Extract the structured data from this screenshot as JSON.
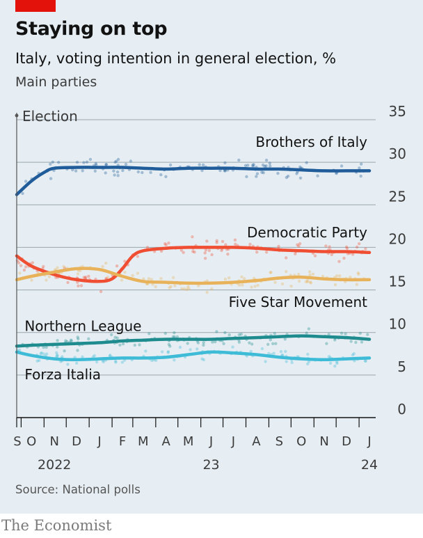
{
  "header": {
    "title": "Staying on top",
    "subtitle": "Italy, voting intention in general election, %",
    "subtitle2": "Main parties"
  },
  "footer": {
    "source": "Source: National polls",
    "brand": "The Economist"
  },
  "colors": {
    "background": "#e6eef3",
    "grid": "#9aa6ad",
    "accent_tag": "#e3120b",
    "brothers_of_italy": "#1f5c99",
    "democratic_party": "#f04e33",
    "five_star_movement": "#e8b25a",
    "northern_league": "#1e8b8f",
    "forza_italia": "#3ebbd6"
  },
  "chart_data": {
    "type": "line",
    "title": "Staying on top",
    "subtitle": "Italy, voting intention in general election, %",
    "note": "Main parties",
    "election_marker": {
      "label": "Election",
      "date": "2022-09-25"
    },
    "ylim": [
      0,
      35
    ],
    "y_ticks": [
      0,
      5,
      10,
      15,
      20,
      25,
      30,
      35
    ],
    "y_axis_position": "right",
    "grid": true,
    "x_range": [
      "2022-09-25",
      "2024-01-15"
    ],
    "x_month_labels": [
      {
        "label": "S",
        "date": "2022-09-25"
      },
      {
        "label": "O",
        "date": "2022-10-15"
      },
      {
        "label": "N",
        "date": "2022-11-15"
      },
      {
        "label": "D",
        "date": "2022-12-15"
      },
      {
        "label": "J",
        "date": "2023-01-15"
      },
      {
        "label": "F",
        "date": "2023-02-15"
      },
      {
        "label": "M",
        "date": "2023-03-15"
      },
      {
        "label": "A",
        "date": "2023-04-15"
      },
      {
        "label": "M",
        "date": "2023-05-15"
      },
      {
        "label": "J",
        "date": "2023-06-15"
      },
      {
        "label": "J",
        "date": "2023-07-15"
      },
      {
        "label": "A",
        "date": "2023-08-15"
      },
      {
        "label": "S",
        "date": "2023-09-15"
      },
      {
        "label": "O",
        "date": "2023-10-15"
      },
      {
        "label": "N",
        "date": "2023-11-15"
      },
      {
        "label": "D",
        "date": "2023-12-15"
      },
      {
        "label": "J",
        "date": "2024-01-15"
      }
    ],
    "x_year_labels": [
      {
        "label": "2022",
        "date": "2022-11-15"
      },
      {
        "label": "23",
        "date": "2023-06-15"
      },
      {
        "label": "24",
        "date": "2024-01-15"
      }
    ],
    "x_tick_dates": [
      "2022-09-25",
      "2022-10-01",
      "2022-11-01",
      "2022-12-01",
      "2023-01-01",
      "2023-02-01",
      "2023-03-01",
      "2023-04-01",
      "2023-05-01",
      "2023-06-01",
      "2023-07-01",
      "2023-08-01",
      "2023-09-01",
      "2023-10-01",
      "2023-11-01",
      "2023-12-01",
      "2024-01-01"
    ],
    "series": [
      {
        "name": "Brothers of Italy",
        "label_anchor": {
          "x": "2023-11-25",
          "y": 31.8
        },
        "dates": [
          "2022-09-25",
          "2022-10-15",
          "2022-11-01",
          "2022-11-15",
          "2022-12-15",
          "2023-01-15",
          "2023-02-15",
          "2023-03-15",
          "2023-04-15",
          "2023-05-15",
          "2023-06-15",
          "2023-07-15",
          "2023-08-15",
          "2023-09-15",
          "2023-10-15",
          "2023-11-15",
          "2023-12-15",
          "2024-01-15"
        ],
        "values": [
          26.2,
          27.8,
          28.8,
          29.3,
          29.4,
          29.4,
          29.4,
          29.3,
          29.2,
          29.3,
          29.3,
          29.3,
          29.2,
          29.2,
          29.1,
          29.0,
          29.0,
          29.0
        ],
        "poll_spread": 1.0
      },
      {
        "name": "Democratic Party",
        "label_anchor": {
          "x": "2023-11-25",
          "y": 21.2
        },
        "dates": [
          "2022-09-25",
          "2022-10-15",
          "2022-11-15",
          "2022-12-15",
          "2023-01-15",
          "2023-02-01",
          "2023-02-15",
          "2023-03-01",
          "2023-03-15",
          "2023-04-15",
          "2023-05-15",
          "2023-06-15",
          "2023-07-15",
          "2023-08-15",
          "2023-09-15",
          "2023-10-15",
          "2023-11-15",
          "2023-12-15",
          "2024-01-15"
        ],
        "values": [
          19.0,
          17.8,
          16.8,
          16.2,
          16.0,
          16.3,
          17.5,
          19.0,
          19.6,
          19.9,
          20.0,
          20.0,
          20.0,
          19.9,
          19.7,
          19.6,
          19.5,
          19.5,
          19.4
        ],
        "poll_spread": 1.1
      },
      {
        "name": "Five Star Movement",
        "label_anchor": {
          "x": "2023-11-25",
          "y": 13.0
        },
        "dates": [
          "2022-09-25",
          "2022-10-15",
          "2022-11-15",
          "2022-12-15",
          "2023-01-15",
          "2023-02-15",
          "2023-03-15",
          "2023-04-15",
          "2023-05-15",
          "2023-06-15",
          "2023-07-15",
          "2023-08-15",
          "2023-09-15",
          "2023-10-15",
          "2023-11-15",
          "2023-12-15",
          "2024-01-15"
        ],
        "values": [
          16.2,
          16.6,
          17.1,
          17.5,
          17.4,
          16.6,
          16.0,
          15.9,
          15.8,
          15.8,
          15.9,
          16.1,
          16.4,
          16.5,
          16.3,
          16.2,
          16.2
        ],
        "poll_spread": 0.9
      },
      {
        "name": "Northern League",
        "label_anchor": {
          "x": "2022-09-30",
          "y": 10.2
        },
        "dates": [
          "2022-09-25",
          "2022-10-15",
          "2022-11-15",
          "2022-12-15",
          "2023-01-15",
          "2023-02-15",
          "2023-03-15",
          "2023-04-15",
          "2023-05-15",
          "2023-06-15",
          "2023-07-15",
          "2023-08-15",
          "2023-09-15",
          "2023-10-15",
          "2023-11-15",
          "2023-12-15",
          "2024-01-15"
        ],
        "values": [
          8.4,
          8.5,
          8.6,
          8.7,
          8.8,
          9.0,
          9.1,
          9.2,
          9.2,
          9.2,
          9.3,
          9.4,
          9.5,
          9.6,
          9.5,
          9.4,
          9.2
        ],
        "poll_spread": 0.8
      },
      {
        "name": "Forza Italia",
        "label_anchor": {
          "x": "2022-09-30",
          "y": 4.5
        },
        "dates": [
          "2022-09-25",
          "2022-10-15",
          "2022-11-15",
          "2022-12-15",
          "2023-01-15",
          "2023-02-15",
          "2023-03-15",
          "2023-04-15",
          "2023-05-15",
          "2023-06-15",
          "2023-07-15",
          "2023-08-15",
          "2023-09-15",
          "2023-10-15",
          "2023-11-15",
          "2023-12-15",
          "2024-01-15"
        ],
        "values": [
          7.7,
          7.3,
          6.9,
          6.8,
          6.9,
          7.0,
          7.0,
          7.1,
          7.4,
          7.7,
          7.6,
          7.4,
          7.1,
          6.9,
          6.8,
          6.9,
          7.0
        ],
        "poll_spread": 0.8
      }
    ]
  }
}
